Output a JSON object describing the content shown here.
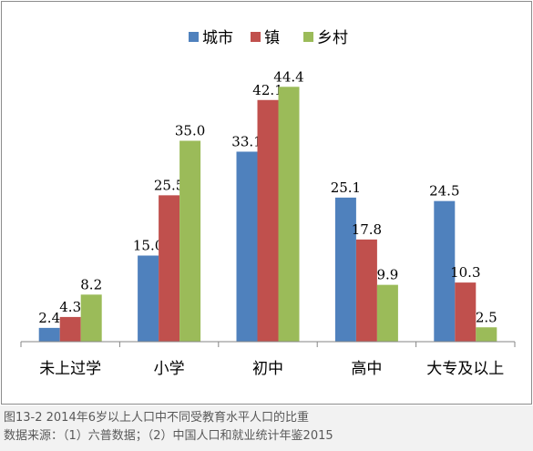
{
  "chart_data": {
    "type": "bar",
    "categories": [
      "未上过学",
      "小学",
      "初中",
      "高中",
      "大专及以上"
    ],
    "series": [
      {
        "name": "城市",
        "color": "#4F81BD",
        "values": [
          2.4,
          15.0,
          33.1,
          25.1,
          24.5
        ]
      },
      {
        "name": "镇",
        "color": "#C0504D",
        "values": [
          4.3,
          25.5,
          42.1,
          17.8,
          10.3
        ]
      },
      {
        "name": "乡村",
        "color": "#9BBB59",
        "values": [
          8.2,
          35.0,
          44.4,
          9.9,
          2.5
        ]
      }
    ],
    "ylim": [
      0,
      50
    ],
    "grid": false,
    "legend_position": "top"
  },
  "caption": {
    "line1": "图13-2 2014年6岁以上人口中不同受教育水平人口的比重",
    "line2": "数据来源：（1）六普数据；（2）中国人口和就业统计年鉴2015"
  }
}
